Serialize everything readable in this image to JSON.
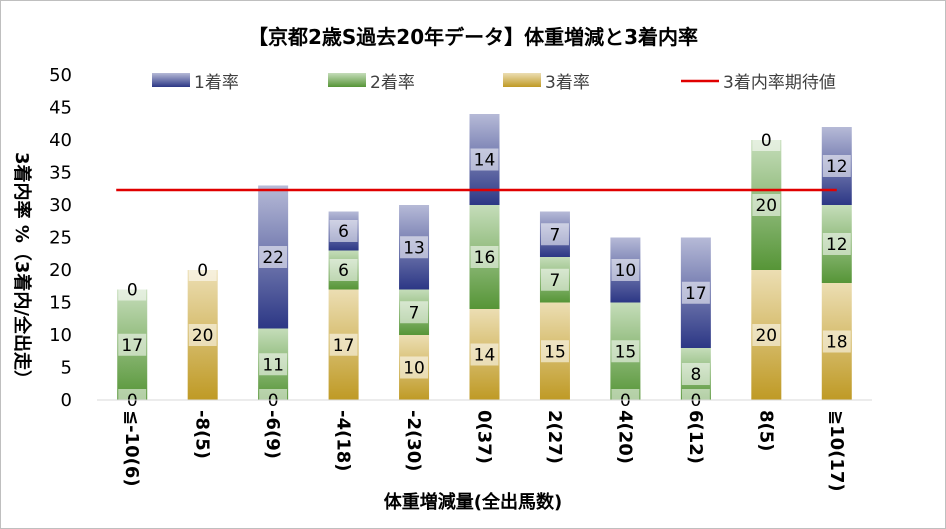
{
  "chart_data": {
    "type": "bar",
    "title": "【京都2歳S過去20年データ】体重増減と3着内率",
    "xlabel": "体重増減量(全出馬数)",
    "ylabel": "3着内率 %（3着内/全出走）",
    "ylim": [
      0,
      50
    ],
    "yticks": [
      "0",
      "5",
      "10",
      "15",
      "20",
      "25",
      "30",
      "35",
      "40",
      "45",
      "50"
    ],
    "stacked": true,
    "categories": [
      "≦-10(6)",
      "-8(5)",
      "-6(9)",
      "-4(18)",
      "-2(30)",
      "0(37)",
      "2(27)",
      "4(20)",
      "6(12)",
      "8(5)",
      "≧10(17)"
    ],
    "series": [
      {
        "name": "3着率",
        "color": "#c9a227",
        "values": [
          0,
          20,
          0,
          17,
          10,
          14,
          15,
          0,
          0,
          20,
          18
        ]
      },
      {
        "name": "2着率",
        "color": "#5a9d3a",
        "values": [
          17,
          0,
          11,
          6,
          7,
          16,
          7,
          15,
          8,
          20,
          12
        ]
      },
      {
        "name": "1着率",
        "color": "#2e3a8c",
        "values": [
          0,
          0,
          22,
          6,
          13,
          14,
          7,
          10,
          17,
          0,
          12
        ]
      }
    ],
    "data_labels": {
      "3着率": [
        "0",
        "20",
        "0",
        "17",
        "10",
        "14",
        "15",
        "0",
        "0",
        "20",
        "18"
      ],
      "2着率": [
        "17",
        "",
        "11",
        "6",
        "7",
        "16",
        "7",
        "15",
        "8",
        "20",
        "12"
      ],
      "1着率": [
        "0",
        "0",
        "22",
        "6",
        "13",
        "14",
        "7",
        "10",
        "17",
        "0",
        "12"
      ]
    },
    "reference_line": {
      "name": "3着内率期待値",
      "value": 32.3,
      "color": "#e00000"
    },
    "legend_position": "top",
    "grid": false
  }
}
